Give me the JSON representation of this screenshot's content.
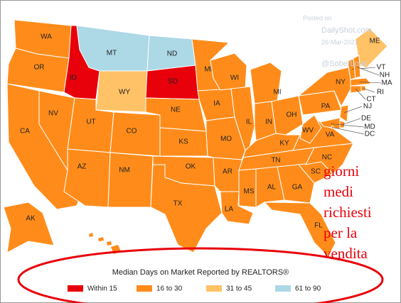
{
  "watermark": {
    "posted": "Posted on",
    "site": "DailyShot.com",
    "date": "26-Mar-2021",
    "handle": "@SoberLook"
  },
  "annotation": [
    "giorni",
    "medi",
    "richiesti",
    "per la",
    "vendita"
  ],
  "legend": {
    "title": "Median Days on Market Reported by REALTORS®",
    "items": [
      {
        "label": "Within 15",
        "color": "#e8000b"
      },
      {
        "label": "16 to 30",
        "color": "#ff8c1a"
      },
      {
        "label": "31 to 45",
        "color": "#ffc266"
      },
      {
        "label": "61 to 90",
        "color": "#add8e6"
      }
    ]
  },
  "states": [
    {
      "label": "WA",
      "category": "16 to 30"
    },
    {
      "label": "OR",
      "category": "16 to 30"
    },
    {
      "label": "CA",
      "category": "16 to 30"
    },
    {
      "label": "NV",
      "category": "16 to 30"
    },
    {
      "label": "ID",
      "category": "Within 15"
    },
    {
      "label": "MT",
      "category": "61 to 90"
    },
    {
      "label": "WY",
      "category": "31 to 45"
    },
    {
      "label": "UT",
      "category": "16 to 30"
    },
    {
      "label": "AZ",
      "category": "16 to 30"
    },
    {
      "label": "CO",
      "category": "16 to 30"
    },
    {
      "label": "NM",
      "category": "16 to 30"
    },
    {
      "label": "ND",
      "category": "61 to 90"
    },
    {
      "label": "SD",
      "category": "Within 15"
    },
    {
      "label": "NE",
      "category": "16 to 30"
    },
    {
      "label": "KS",
      "category": "16 to 30"
    },
    {
      "label": "OK",
      "category": "16 to 30"
    },
    {
      "label": "TX",
      "category": "16 to 30"
    },
    {
      "label": "MN",
      "category": "16 to 30"
    },
    {
      "label": "IA",
      "category": "16 to 30"
    },
    {
      "label": "MO",
      "category": "16 to 30"
    },
    {
      "label": "AR",
      "category": "16 to 30"
    },
    {
      "label": "LA",
      "category": "16 to 30"
    },
    {
      "label": "WI",
      "category": "16 to 30"
    },
    {
      "label": "IL",
      "category": "16 to 30"
    },
    {
      "label": "MI",
      "category": "16 to 30"
    },
    {
      "label": "IN",
      "category": "16 to 30"
    },
    {
      "label": "OH",
      "category": "16 to 30"
    },
    {
      "label": "KY",
      "category": "16 to 30"
    },
    {
      "label": "TN",
      "category": "16 to 30"
    },
    {
      "label": "MS",
      "category": "16 to 30"
    },
    {
      "label": "AL",
      "category": "16 to 30"
    },
    {
      "label": "GA",
      "category": "16 to 30"
    },
    {
      "label": "FL",
      "category": "16 to 30"
    },
    {
      "label": "SC",
      "category": "16 to 30"
    },
    {
      "label": "NC",
      "category": "16 to 30"
    },
    {
      "label": "VA",
      "category": "16 to 30"
    },
    {
      "label": "WV",
      "category": "16 to 30"
    },
    {
      "label": "PA",
      "category": "16 to 30"
    },
    {
      "label": "NY",
      "category": "16 to 30"
    },
    {
      "label": "ME",
      "category": "31 to 45"
    },
    {
      "label": "VT",
      "category": "16 to 30"
    },
    {
      "label": "NH",
      "category": "16 to 30"
    },
    {
      "label": "MA",
      "category": "16 to 30"
    },
    {
      "label": "RI",
      "category": "16 to 30"
    },
    {
      "label": "CT",
      "category": "16 to 30"
    },
    {
      "label": "NJ",
      "category": "16 to 30"
    },
    {
      "label": "DE",
      "category": "16 to 30"
    },
    {
      "label": "MD",
      "category": "16 to 30"
    },
    {
      "label": "DC",
      "category": "16 to 30"
    },
    {
      "label": "AK",
      "category": "16 to 30"
    }
  ]
}
